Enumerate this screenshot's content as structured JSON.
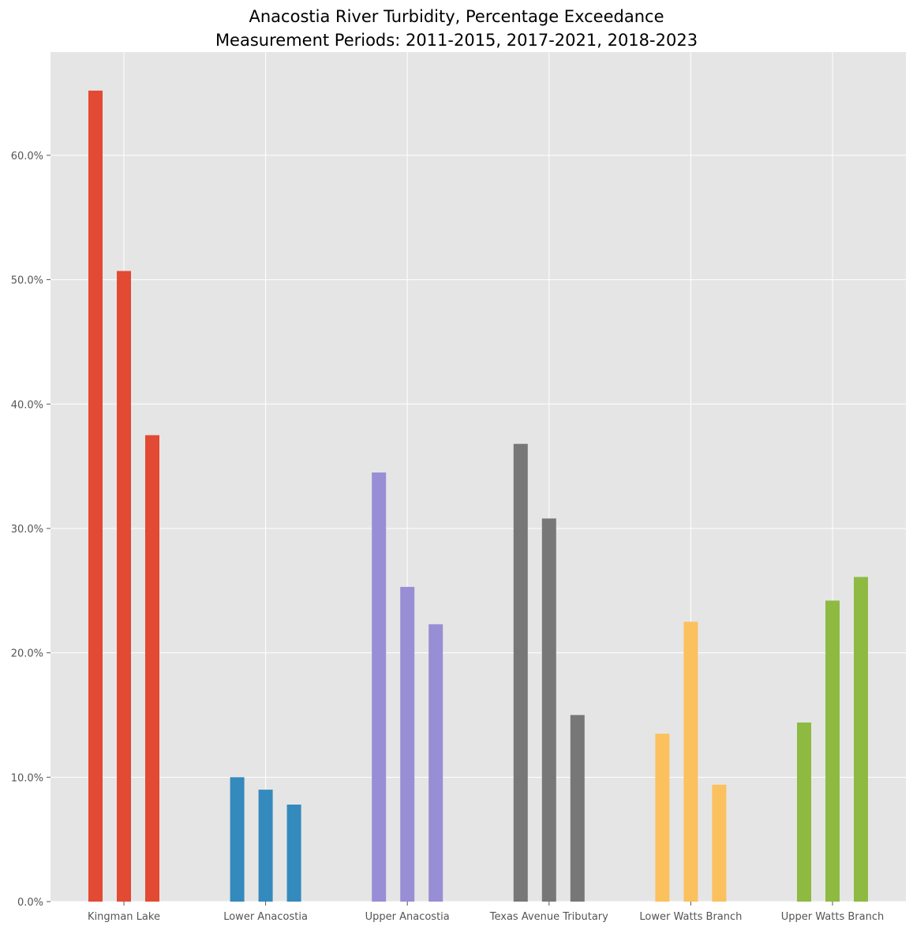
{
  "chart_data": {
    "type": "bar",
    "title": "Anacostia River Turbidity, Percentage Exceedance",
    "subtitle": "Measurement Periods: 2011-2015, 2017-2021, 2018-2023",
    "xlabel": "",
    "ylabel": "",
    "ylim": [
      0,
      68.3
    ],
    "y_ticks": [
      0,
      10,
      20,
      30,
      40,
      50,
      60
    ],
    "y_tick_labels": [
      "0.0%",
      "10.0%",
      "20.0%",
      "30.0%",
      "40.0%",
      "50.0%",
      "60.0%"
    ],
    "grid": true,
    "categories": [
      "Kingman Lake",
      "Lower Anacostia",
      "Upper Anacostia",
      "Texas Avenue Tributary",
      "Lower Watts Branch",
      "Upper Watts Branch"
    ],
    "colors": [
      "#E24A33",
      "#348ABD",
      "#988ED5",
      "#777777",
      "#FBC15E",
      "#8EBA42"
    ],
    "background": "#E5E5E5",
    "values": [
      [
        65.2,
        50.7,
        37.5
      ],
      [
        10.0,
        9.0,
        7.8
      ],
      [
        34.5,
        25.3,
        22.3
      ],
      [
        36.8,
        30.8,
        15.0
      ],
      [
        13.5,
        22.5,
        9.4
      ],
      [
        14.4,
        24.2,
        26.1
      ]
    ]
  }
}
